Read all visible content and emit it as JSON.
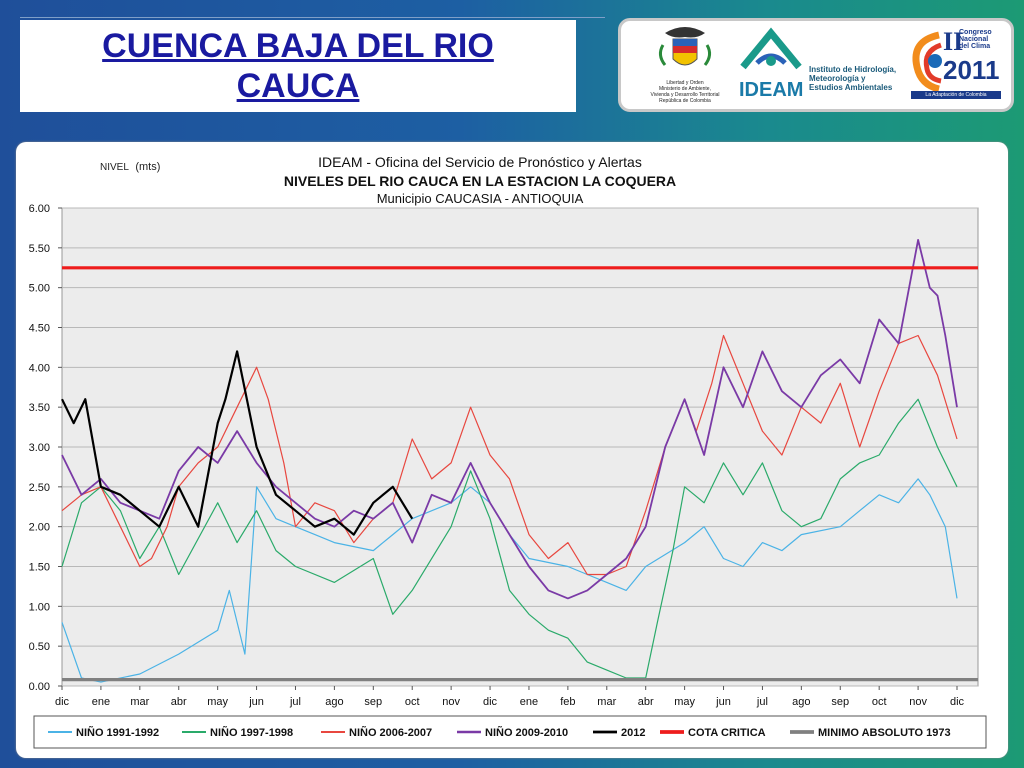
{
  "slide": {
    "title": "CUENCA  BAJA  DEL RIO CAUCA",
    "colors": {
      "title": "#1a1aa0",
      "background": "#1d5fa3"
    }
  },
  "logos": {
    "ministry": {
      "icon": "colombia-coat-of-arms-icon",
      "caption_lines": [
        "Libertad y Orden",
        "Ministerio de Ambiente,",
        "Vivienda y Desarrollo Territorial",
        "República de Colombia"
      ]
    },
    "ideam": {
      "icon": "ideam-logo-icon",
      "name": "IDEAM",
      "description_lines": [
        "Instituto de Hidrología,",
        "Meteorología y",
        "Estudios Ambientales"
      ]
    },
    "congreso": {
      "icon": "congreso-clima-logo-icon",
      "lines": [
        "II",
        "Congreso",
        "Nacional",
        "del Clima",
        "2011",
        "La Adaptación de Colombia"
      ]
    }
  },
  "chart_data": {
    "type": "line",
    "title_lines": [
      "IDEAM - Oficina del Servicio de Pronóstico y Alertas",
      "NIVELES DEL RIO CAUCA EN LA ESTACION LA COQUERA",
      "Municipio CAUCASIA  - ANTIOQUIA"
    ],
    "ylabel_prefix": "NIVEL",
    "ylabel_unit": "(mts)",
    "x_categories": [
      "dic",
      "ene",
      "mar",
      "abr",
      "may",
      "jun",
      "jul",
      "ago",
      "sep",
      "oct",
      "nov",
      "dic",
      "ene",
      "feb",
      "mar",
      "abr",
      "may",
      "jun",
      "jul",
      "ago",
      "sep",
      "oct",
      "nov",
      "dic"
    ],
    "y_ticks": [
      "6.00",
      "5.50",
      "5.00",
      "4.50",
      "4.00",
      "3.50",
      "3.00",
      "2.50",
      "2.00",
      "1.50",
      "1.00",
      "0.50",
      "0.00"
    ],
    "ylim": [
      0,
      6
    ],
    "grid": true,
    "legend_position": "bottom",
    "series": [
      {
        "name": "NIÑO 1991-1992",
        "color": "#4bb3e6",
        "x": [
          0,
          0.5,
          1,
          2,
          3,
          4,
          4.3,
          4.7,
          5,
          5.5,
          6,
          6.5,
          7,
          8,
          8.5,
          9,
          10,
          10.5,
          11,
          11.5,
          12,
          13,
          13.5,
          14,
          14.5,
          15,
          16,
          16.5,
          17,
          17.5,
          18,
          18.5,
          19,
          20,
          20.5,
          21,
          21.5,
          22,
          22.3,
          22.7,
          23
        ],
        "y": [
          0.8,
          0.1,
          0.05,
          0.15,
          0.4,
          0.7,
          1.2,
          0.4,
          2.5,
          2.1,
          2.0,
          1.9,
          1.8,
          1.7,
          1.9,
          2.1,
          2.3,
          2.5,
          2.3,
          1.9,
          1.6,
          1.5,
          1.4,
          1.3,
          1.2,
          1.5,
          1.8,
          2.0,
          1.6,
          1.5,
          1.8,
          1.7,
          1.9,
          2.0,
          2.2,
          2.4,
          2.3,
          2.6,
          2.4,
          2.0,
          1.1
        ]
      },
      {
        "name": "NIÑO 1997-1998",
        "color": "#2aaa6a",
        "x": [
          0,
          0.5,
          1,
          1.5,
          2,
          2.5,
          3,
          4,
          4.5,
          5,
          5.5,
          6,
          7,
          8,
          8.5,
          9,
          10,
          10.5,
          11,
          11.5,
          12,
          12.5,
          13,
          13.5,
          14,
          14.5,
          15,
          15.3,
          15.7,
          16,
          16.5,
          17,
          17.5,
          18,
          18.5,
          19,
          19.5,
          20,
          20.5,
          21,
          21.5,
          22,
          22.5,
          23
        ],
        "y": [
          1.5,
          2.3,
          2.5,
          2.2,
          1.6,
          2.0,
          1.4,
          2.3,
          1.8,
          2.2,
          1.7,
          1.5,
          1.3,
          1.6,
          0.9,
          1.2,
          2.0,
          2.7,
          2.1,
          1.2,
          0.9,
          0.7,
          0.6,
          0.3,
          0.2,
          0.1,
          0.1,
          0.8,
          1.7,
          2.5,
          2.3,
          2.8,
          2.4,
          2.8,
          2.2,
          2.0,
          2.1,
          2.6,
          2.8,
          2.9,
          3.3,
          3.6,
          3.0,
          2.5
        ]
      },
      {
        "name": "NIÑO 2006-2007",
        "color": "#e8473f",
        "x": [
          0,
          0.5,
          1,
          1.5,
          2,
          2.3,
          2.7,
          3,
          3.5,
          4,
          4.5,
          5,
          5.3,
          5.7,
          6,
          6.5,
          7,
          7.5,
          8,
          8.5,
          9,
          9.5,
          10,
          10.5,
          11,
          11.5,
          12,
          12.5,
          13,
          13.5,
          14,
          14.5,
          15,
          15.5,
          16,
          16.3,
          16.7,
          17,
          17.5,
          18,
          18.5,
          19,
          19.5,
          20,
          20.5,
          21,
          21.5,
          22,
          22.5,
          23
        ],
        "y": [
          2.2,
          2.4,
          2.5,
          2.0,
          1.5,
          1.6,
          2.0,
          2.5,
          2.8,
          3.0,
          3.5,
          4.0,
          3.6,
          2.8,
          2.0,
          2.3,
          2.2,
          1.8,
          2.1,
          2.3,
          3.1,
          2.6,
          2.8,
          3.5,
          2.9,
          2.6,
          1.9,
          1.6,
          1.8,
          1.4,
          1.4,
          1.5,
          2.2,
          3.0,
          3.6,
          3.2,
          3.8,
          4.4,
          3.8,
          3.2,
          2.9,
          3.5,
          3.3,
          3.8,
          3.0,
          3.7,
          4.3,
          4.4,
          3.9,
          3.1
        ]
      },
      {
        "name": "NIÑO 2009-2010",
        "color": "#7a3aa6",
        "x": [
          0,
          0.5,
          1,
          1.5,
          2,
          2.5,
          3,
          3.5,
          4,
          4.5,
          5,
          5.5,
          6,
          6.5,
          7,
          7.5,
          8,
          8.5,
          9,
          9.5,
          10,
          10.5,
          11,
          11.5,
          12,
          12.5,
          13,
          13.5,
          14,
          14.5,
          15,
          15.5,
          16,
          16.5,
          17,
          17.5,
          18,
          18.5,
          19,
          19.5,
          20,
          20.5,
          21,
          21.5,
          22,
          22.3,
          22.5,
          22.7,
          23
        ],
        "y": [
          2.9,
          2.4,
          2.6,
          2.3,
          2.2,
          2.1,
          2.7,
          3.0,
          2.8,
          3.2,
          2.8,
          2.5,
          2.3,
          2.1,
          2.0,
          2.2,
          2.1,
          2.3,
          1.8,
          2.4,
          2.3,
          2.8,
          2.3,
          1.9,
          1.5,
          1.2,
          1.1,
          1.2,
          1.4,
          1.6,
          2.0,
          3.0,
          3.6,
          2.9,
          4.0,
          3.5,
          4.2,
          3.7,
          3.5,
          3.9,
          4.1,
          3.8,
          4.6,
          4.3,
          5.6,
          5.0,
          4.9,
          4.4,
          3.5
        ]
      },
      {
        "name": "2012",
        "color": "#000000",
        "x": [
          0,
          0.3,
          0.6,
          1,
          1.5,
          2,
          2.5,
          3,
          3.5,
          4,
          4.2,
          4.5,
          5,
          5.5,
          6,
          6.5,
          7,
          7.5,
          8,
          8.5,
          9
        ],
        "y": [
          3.6,
          3.3,
          3.6,
          2.5,
          2.4,
          2.2,
          2.0,
          2.5,
          2.0,
          3.3,
          3.6,
          4.2,
          3.0,
          2.4,
          2.2,
          2.0,
          2.1,
          1.9,
          2.3,
          2.5,
          2.1
        ]
      },
      {
        "name": "COTA CRITICA",
        "color": "#ee1c1c",
        "x": [
          0,
          23
        ],
        "y": [
          5.25,
          5.25
        ]
      },
      {
        "name": "MINIMO ABSOLUTO 1973",
        "color": "#808080",
        "x": [
          0,
          23
        ],
        "y": [
          0.08,
          0.08
        ]
      }
    ]
  }
}
